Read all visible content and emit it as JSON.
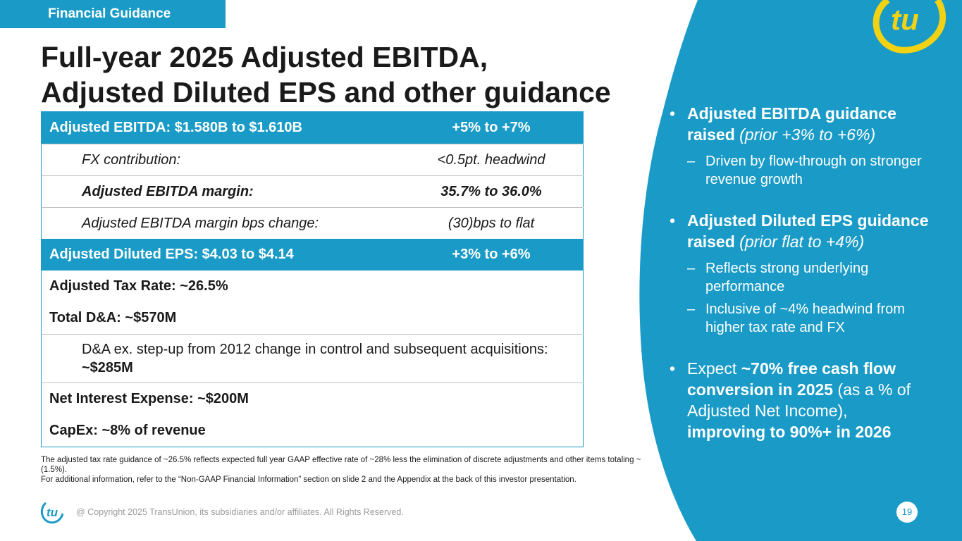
{
  "header": {
    "section_tag": "Financial Guidance",
    "title_line1": "Full-year 2025 Adjusted EBITDA,",
    "title_line2": "Adjusted Diluted EPS and other guidance",
    "brand_color": "#1a9bc7",
    "logo_color": "#f2d213"
  },
  "table": {
    "ebitda": {
      "label": "Adjusted EBITDA: $1.580B to $1.610B",
      "value": "+5% to +7%"
    },
    "fx": {
      "label": "FX contribution:",
      "value": "<0.5pt. headwind"
    },
    "margin": {
      "label": "Adjusted EBITDA margin:",
      "value": "35.7% to 36.0%"
    },
    "margin_bps": {
      "label": "Adjusted EBITDA margin bps change:",
      "value": "(30)bps to flat"
    },
    "eps": {
      "label": "Adjusted Diluted EPS: $4.03 to $4.14",
      "value": "+3% to +6%"
    },
    "tax_rate": "Adjusted Tax Rate: ~26.5%",
    "total_da": "Total D&A: ~$570M",
    "da_ex_text": "D&A ex. step-up from 2012 change in control and subsequent acquisitions: ",
    "da_ex_value": "~$285M",
    "net_interest": "Net Interest Expense: ~$200M",
    "capex": "CapEx: ~8% of revenue"
  },
  "footnotes": {
    "line1": "The adjusted tax rate guidance of ~26.5% reflects expected full year GAAP effective rate of ~28% less the elimination of discrete adjustments and other items totaling ~(1.5%).",
    "line2": "For additional information, refer to the “Non-GAAP Financial Information” section on slide 2 and the Appendix at the back of this investor presentation."
  },
  "bullets": {
    "b1_bold": "Adjusted EBITDA guidance raised",
    "b1_italic": "(prior +3% to +6%)",
    "b1_sub1": "Driven by flow-through on stronger revenue growth",
    "b2_bold": "Adjusted Diluted EPS guidance raised",
    "b2_italic": "(prior flat to +4%)",
    "b2_sub1": "Reflects strong underlying performance",
    "b2_sub2": "Inclusive of ~4% headwind from higher tax rate and FX",
    "b3_pre": "Expect ",
    "b3_bold1": "~70% free cash flow conversion in 2025",
    "b3_mid": " (as a % of Adjusted Net Income), ",
    "b3_bold2": "improving to 90%+ in 2026"
  },
  "footer": {
    "copyright": "@ Copyright 2025 TransUnion, its subsidiaries and/or affiliates.  All Rights Reserved.",
    "page_number": "19"
  }
}
